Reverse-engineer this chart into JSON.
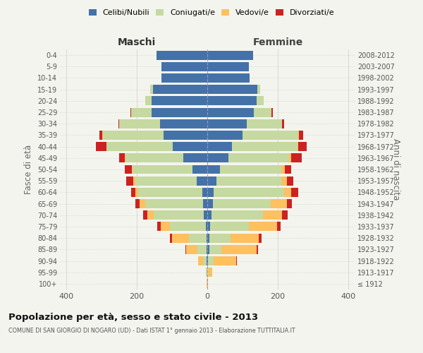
{
  "age_groups": [
    "100+",
    "95-99",
    "90-94",
    "85-89",
    "80-84",
    "75-79",
    "70-74",
    "65-69",
    "60-64",
    "55-59",
    "50-54",
    "45-49",
    "40-44",
    "35-39",
    "30-34",
    "25-29",
    "20-24",
    "15-19",
    "10-14",
    "5-9",
    "0-4"
  ],
  "birth_years": [
    "≤ 1912",
    "1913-1917",
    "1918-1922",
    "1923-1927",
    "1928-1932",
    "1933-1937",
    "1938-1942",
    "1943-1947",
    "1948-1952",
    "1953-1957",
    "1958-1962",
    "1963-1967",
    "1968-1972",
    "1973-1977",
    "1978-1982",
    "1983-1987",
    "1988-1992",
    "1993-1997",
    "1998-2002",
    "2003-2007",
    "2008-2012"
  ],
  "male_celibe": [
    0,
    0,
    2,
    3,
    3,
    5,
    10,
    12,
    15,
    30,
    42,
    68,
    98,
    125,
    135,
    158,
    158,
    155,
    130,
    130,
    145
  ],
  "male_coniugato": [
    1,
    2,
    10,
    25,
    50,
    102,
    142,
    165,
    182,
    175,
    170,
    165,
    188,
    172,
    115,
    58,
    18,
    7,
    0,
    0,
    0
  ],
  "male_vedovo": [
    1,
    3,
    15,
    32,
    48,
    26,
    18,
    15,
    8,
    5,
    3,
    2,
    1,
    1,
    0,
    0,
    0,
    0,
    0,
    0,
    0
  ],
  "male_divorziato": [
    0,
    0,
    0,
    2,
    5,
    10,
    12,
    13,
    12,
    20,
    20,
    15,
    30,
    8,
    3,
    3,
    0,
    0,
    0,
    0,
    0
  ],
  "female_nubile": [
    0,
    0,
    2,
    5,
    5,
    8,
    12,
    15,
    18,
    25,
    35,
    60,
    70,
    100,
    112,
    132,
    140,
    142,
    120,
    118,
    130
  ],
  "female_coniugata": [
    0,
    3,
    15,
    35,
    60,
    110,
    145,
    165,
    200,
    185,
    175,
    172,
    185,
    158,
    100,
    50,
    20,
    7,
    0,
    0,
    0
  ],
  "female_vedova": [
    2,
    10,
    65,
    100,
    80,
    80,
    55,
    45,
    20,
    15,
    10,
    5,
    2,
    2,
    0,
    0,
    0,
    0,
    0,
    0,
    0
  ],
  "female_divorziata": [
    0,
    0,
    2,
    3,
    8,
    10,
    15,
    15,
    20,
    18,
    18,
    30,
    25,
    12,
    5,
    3,
    0,
    0,
    0,
    0,
    0
  ],
  "colors": {
    "celibe": "#4472a8",
    "coniugato": "#c5d9a0",
    "vedovo": "#ffc060",
    "divorziato": "#cc2222"
  },
  "title": "Popolazione per età, sesso e stato civile - 2013",
  "subtitle": "COMUNE DI SAN GIORGIO DI NOGARO (UD) - Dati ISTAT 1° gennaio 2013 - Elaborazione TUTTITALIA.IT",
  "xlabel_left": "Maschi",
  "xlabel_right": "Femmine",
  "ylabel_left": "Fasce di età",
  "ylabel_right": "Anni di nascita",
  "xlim": 420,
  "bg_color": "#f4f4ee",
  "grid_color": "#cccccc"
}
